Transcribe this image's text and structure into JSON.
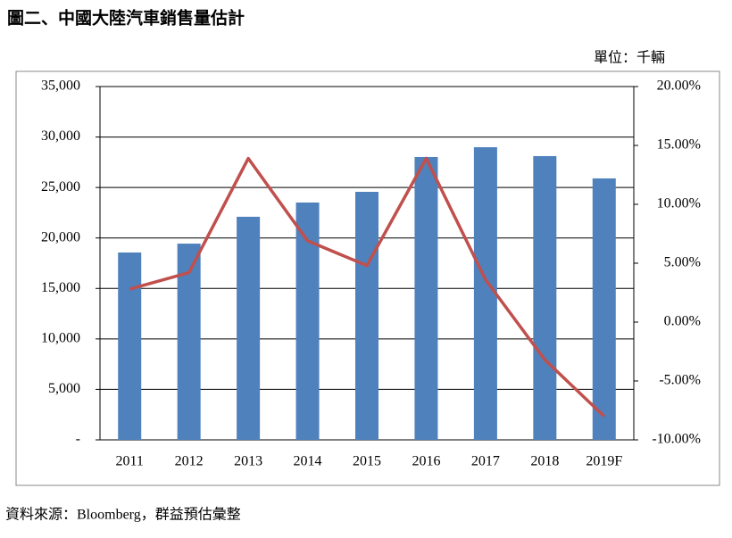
{
  "chart_data": {
    "type": "bar-line",
    "title": "圖二、中國大陸汽車銷售量估計",
    "unit_label": "單位：千輛",
    "source": "資料來源：Bloomberg，群益預估彙整",
    "categories": [
      "2011",
      "2012",
      "2013",
      "2014",
      "2015",
      "2016",
      "2017",
      "2018",
      "2019F"
    ],
    "series": [
      {
        "type": "bar",
        "color": "#4f81bd",
        "values": [
          18560,
          19440,
          22100,
          23510,
          24570,
          28020,
          28990,
          28110,
          25900
        ]
      },
      {
        "type": "line",
        "axis": "y2",
        "color": "#c0504d",
        "values": [
          2.8,
          4.2,
          13.9,
          6.9,
          4.8,
          13.9,
          3.6,
          -3.2,
          -8.0
        ]
      }
    ],
    "ylim": [
      0,
      35000
    ],
    "yticks": [
      {
        "value": 0,
        "label": "-"
      },
      {
        "value": 5000,
        "label": "5,000"
      },
      {
        "value": 10000,
        "label": "10,000"
      },
      {
        "value": 15000,
        "label": "15,000"
      },
      {
        "value": 20000,
        "label": "20,000"
      },
      {
        "value": 25000,
        "label": "25,000"
      },
      {
        "value": 30000,
        "label": "30,000"
      },
      {
        "value": 35000,
        "label": "35,000"
      }
    ],
    "y2lim": [
      -10,
      20
    ],
    "y2ticks": [
      {
        "value": -10,
        "label": "-10.00%"
      },
      {
        "value": -5,
        "label": "-5.00%"
      },
      {
        "value": 0,
        "label": "0.00%"
      },
      {
        "value": 5,
        "label": "5.00%"
      },
      {
        "value": 10,
        "label": "10.00%"
      },
      {
        "value": 15,
        "label": "15.00%"
      },
      {
        "value": 20,
        "label": "20.00%"
      }
    ],
    "grid": true
  }
}
